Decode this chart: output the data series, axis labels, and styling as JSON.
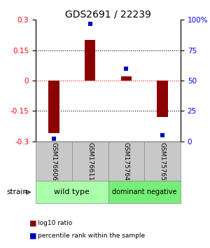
{
  "title": "GDS2691 / 22239",
  "samples": [
    "GSM176606",
    "GSM176611",
    "GSM175764",
    "GSM175765"
  ],
  "log10_ratio": [
    -0.26,
    0.2,
    0.02,
    -0.18
  ],
  "percentile_rank": [
    2.0,
    97.0,
    60.0,
    5.0
  ],
  "group_boundaries": [
    {
      "label": "wild type",
      "color": "#aaffaa",
      "start": 0,
      "end": 2
    },
    {
      "label": "dominant negative",
      "color": "#77ee77",
      "start": 2,
      "end": 4
    }
  ],
  "ylim_left": [
    -0.3,
    0.3
  ],
  "ylim_right": [
    0,
    100
  ],
  "yticks_left": [
    -0.3,
    -0.15,
    0,
    0.15,
    0.3
  ],
  "yticks_right": [
    0,
    25,
    50,
    75,
    100
  ],
  "ytick_labels_right": [
    "0",
    "25",
    "50",
    "75",
    "100%"
  ],
  "grid_lines_black": [
    -0.15,
    0.15
  ],
  "grid_line_red": 0.0,
  "bar_color": "#8B0000",
  "square_color": "#0000BB",
  "title_fontsize": 10,
  "bar_width": 0.3,
  "background_color": "#ffffff",
  "gray_sample_color": "#c8c8c8",
  "legend_red_label": "log10 ratio",
  "legend_blue_label": "percentile rank within the sample",
  "strain_label": "strain"
}
